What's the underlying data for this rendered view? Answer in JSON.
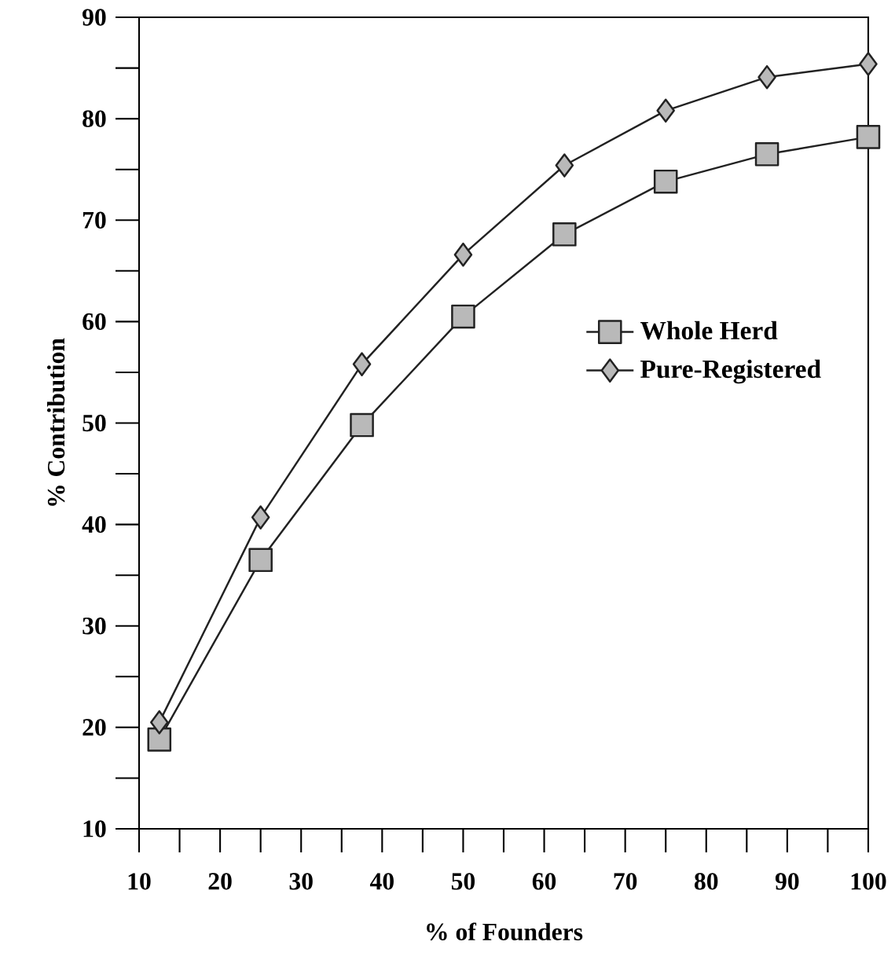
{
  "chart_data": {
    "type": "line",
    "xlabel": "% of Founders",
    "ylabel": "% Contribution",
    "x": [
      12.5,
      25,
      37.5,
      50,
      62.5,
      75,
      87.5,
      100
    ],
    "series": [
      {
        "name": "Whole Herd",
        "color": "#222222",
        "marker": "square",
        "values": [
          18.8,
          36.5,
          49.8,
          60.5,
          68.6,
          73.8,
          76.5,
          78.2
        ]
      },
      {
        "name": "Pure-Registered",
        "color": "#222222",
        "marker": "diamond",
        "values": [
          20.5,
          40.7,
          55.8,
          66.6,
          75.4,
          80.8,
          84.1,
          85.4
        ]
      }
    ],
    "xlim": [
      10,
      100
    ],
    "ylim": [
      10,
      90
    ],
    "xticks": [
      10,
      20,
      30,
      40,
      50,
      60,
      70,
      80,
      90,
      100
    ],
    "yticks": [
      10,
      20,
      30,
      40,
      50,
      60,
      70,
      80,
      90
    ],
    "legend": "right"
  }
}
